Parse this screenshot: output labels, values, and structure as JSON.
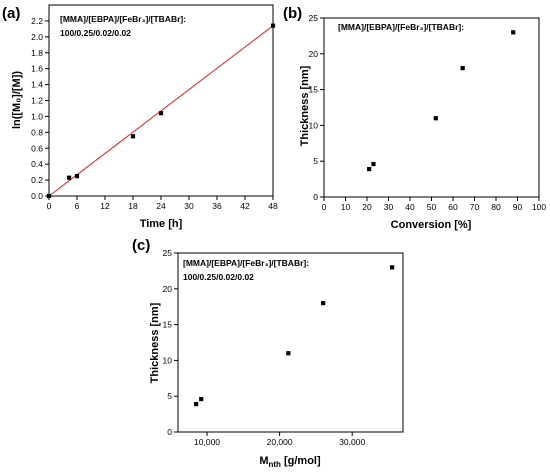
{
  "chart_data": [
    {
      "id": "a",
      "type": "scatter",
      "panel_label": "(a)",
      "annotation_lines": [
        "[MMA]/[EBPA]/[FeBr₃]/[TBABr]:",
        "100/0.25/0.02/0.02"
      ],
      "xlabel": "Time [h]",
      "ylabel": "ln([M₀]/[M])",
      "xlim": [
        0,
        48
      ],
      "ylim": [
        0,
        2.4
      ],
      "xticks": [
        0,
        6,
        12,
        18,
        24,
        30,
        36,
        42,
        48
      ],
      "yticks": [
        0.0,
        0.2,
        0.4,
        0.6,
        0.8,
        1.0,
        1.2,
        1.4,
        1.6,
        1.8,
        2.0,
        2.2
      ],
      "tick_labels_x": [
        "0",
        "6",
        "12",
        "18",
        "24",
        "30",
        "36",
        "42",
        "48"
      ],
      "tick_labels_y": [
        "0.0",
        "0.2",
        "0.4",
        "0.6",
        "0.8",
        "1.0",
        "1.2",
        "1.4",
        "1.6",
        "1.8",
        "2.0",
        "2.2"
      ],
      "points": [
        {
          "x": 0,
          "y": 0.0
        },
        {
          "x": 4.3,
          "y": 0.23
        },
        {
          "x": 6,
          "y": 0.25
        },
        {
          "x": 18,
          "y": 0.75
        },
        {
          "x": 24,
          "y": 1.04
        },
        {
          "x": 48,
          "y": 2.14
        }
      ],
      "fit_line": {
        "x": [
          0,
          48
        ],
        "y": [
          0,
          2.14
        ],
        "color": "#e02020"
      },
      "marker_color": "#000000"
    },
    {
      "id": "b",
      "type": "scatter",
      "panel_label": "(b)",
      "annotation_lines": [
        "[MMA]/[EBPA]/[FeBr₃]/[TBABr]:"
      ],
      "xlabel": "Conversion [%]",
      "ylabel": "Thickness [nm]",
      "xlim": [
        0,
        100
      ],
      "ylim": [
        0,
        25
      ],
      "xticks": [
        0,
        10,
        20,
        30,
        40,
        50,
        60,
        70,
        80,
        90,
        100
      ],
      "yticks": [
        0,
        5,
        10,
        15,
        20,
        25
      ],
      "tick_labels_x": [
        "0",
        "10",
        "20",
        "30",
        "40",
        "50",
        "60",
        "70",
        "80",
        "90",
        "100"
      ],
      "tick_labels_y": [
        "0",
        "5",
        "10",
        "15",
        "20",
        "25"
      ],
      "points": [
        {
          "x": 21,
          "y": 3.9
        },
        {
          "x": 23,
          "y": 4.6
        },
        {
          "x": 52,
          "y": 11
        },
        {
          "x": 64.5,
          "y": 18
        },
        {
          "x": 88,
          "y": 23
        }
      ],
      "marker_color": "#000000"
    },
    {
      "id": "c",
      "type": "scatter",
      "panel_label": "(c)",
      "annotation_lines": [
        "[MMA]/[EBPA]/[FeBr₃]/[TBABr]:",
        "100/0.25/0.02/0.02"
      ],
      "xlabel_main": "M",
      "xlabel_sub": "nth",
      "xlabel_rest": " [g/mol]",
      "ylabel": "Thickness [nm]",
      "xlim": [
        6000,
        37000
      ],
      "ylim": [
        0,
        25
      ],
      "xticks": [
        10000,
        20000,
        30000
      ],
      "yticks": [
        0,
        5,
        10,
        15,
        20,
        25
      ],
      "tick_labels_x": [
        "10,000",
        "20,000",
        "30,000"
      ],
      "tick_labels_y": [
        "0",
        "5",
        "10",
        "15",
        "20",
        "25"
      ],
      "points": [
        {
          "x": 8500,
          "y": 3.9
        },
        {
          "x": 9200,
          "y": 4.6
        },
        {
          "x": 21200,
          "y": 11
        },
        {
          "x": 26000,
          "y": 18
        },
        {
          "x": 35500,
          "y": 23
        }
      ],
      "marker_color": "#000000"
    }
  ]
}
